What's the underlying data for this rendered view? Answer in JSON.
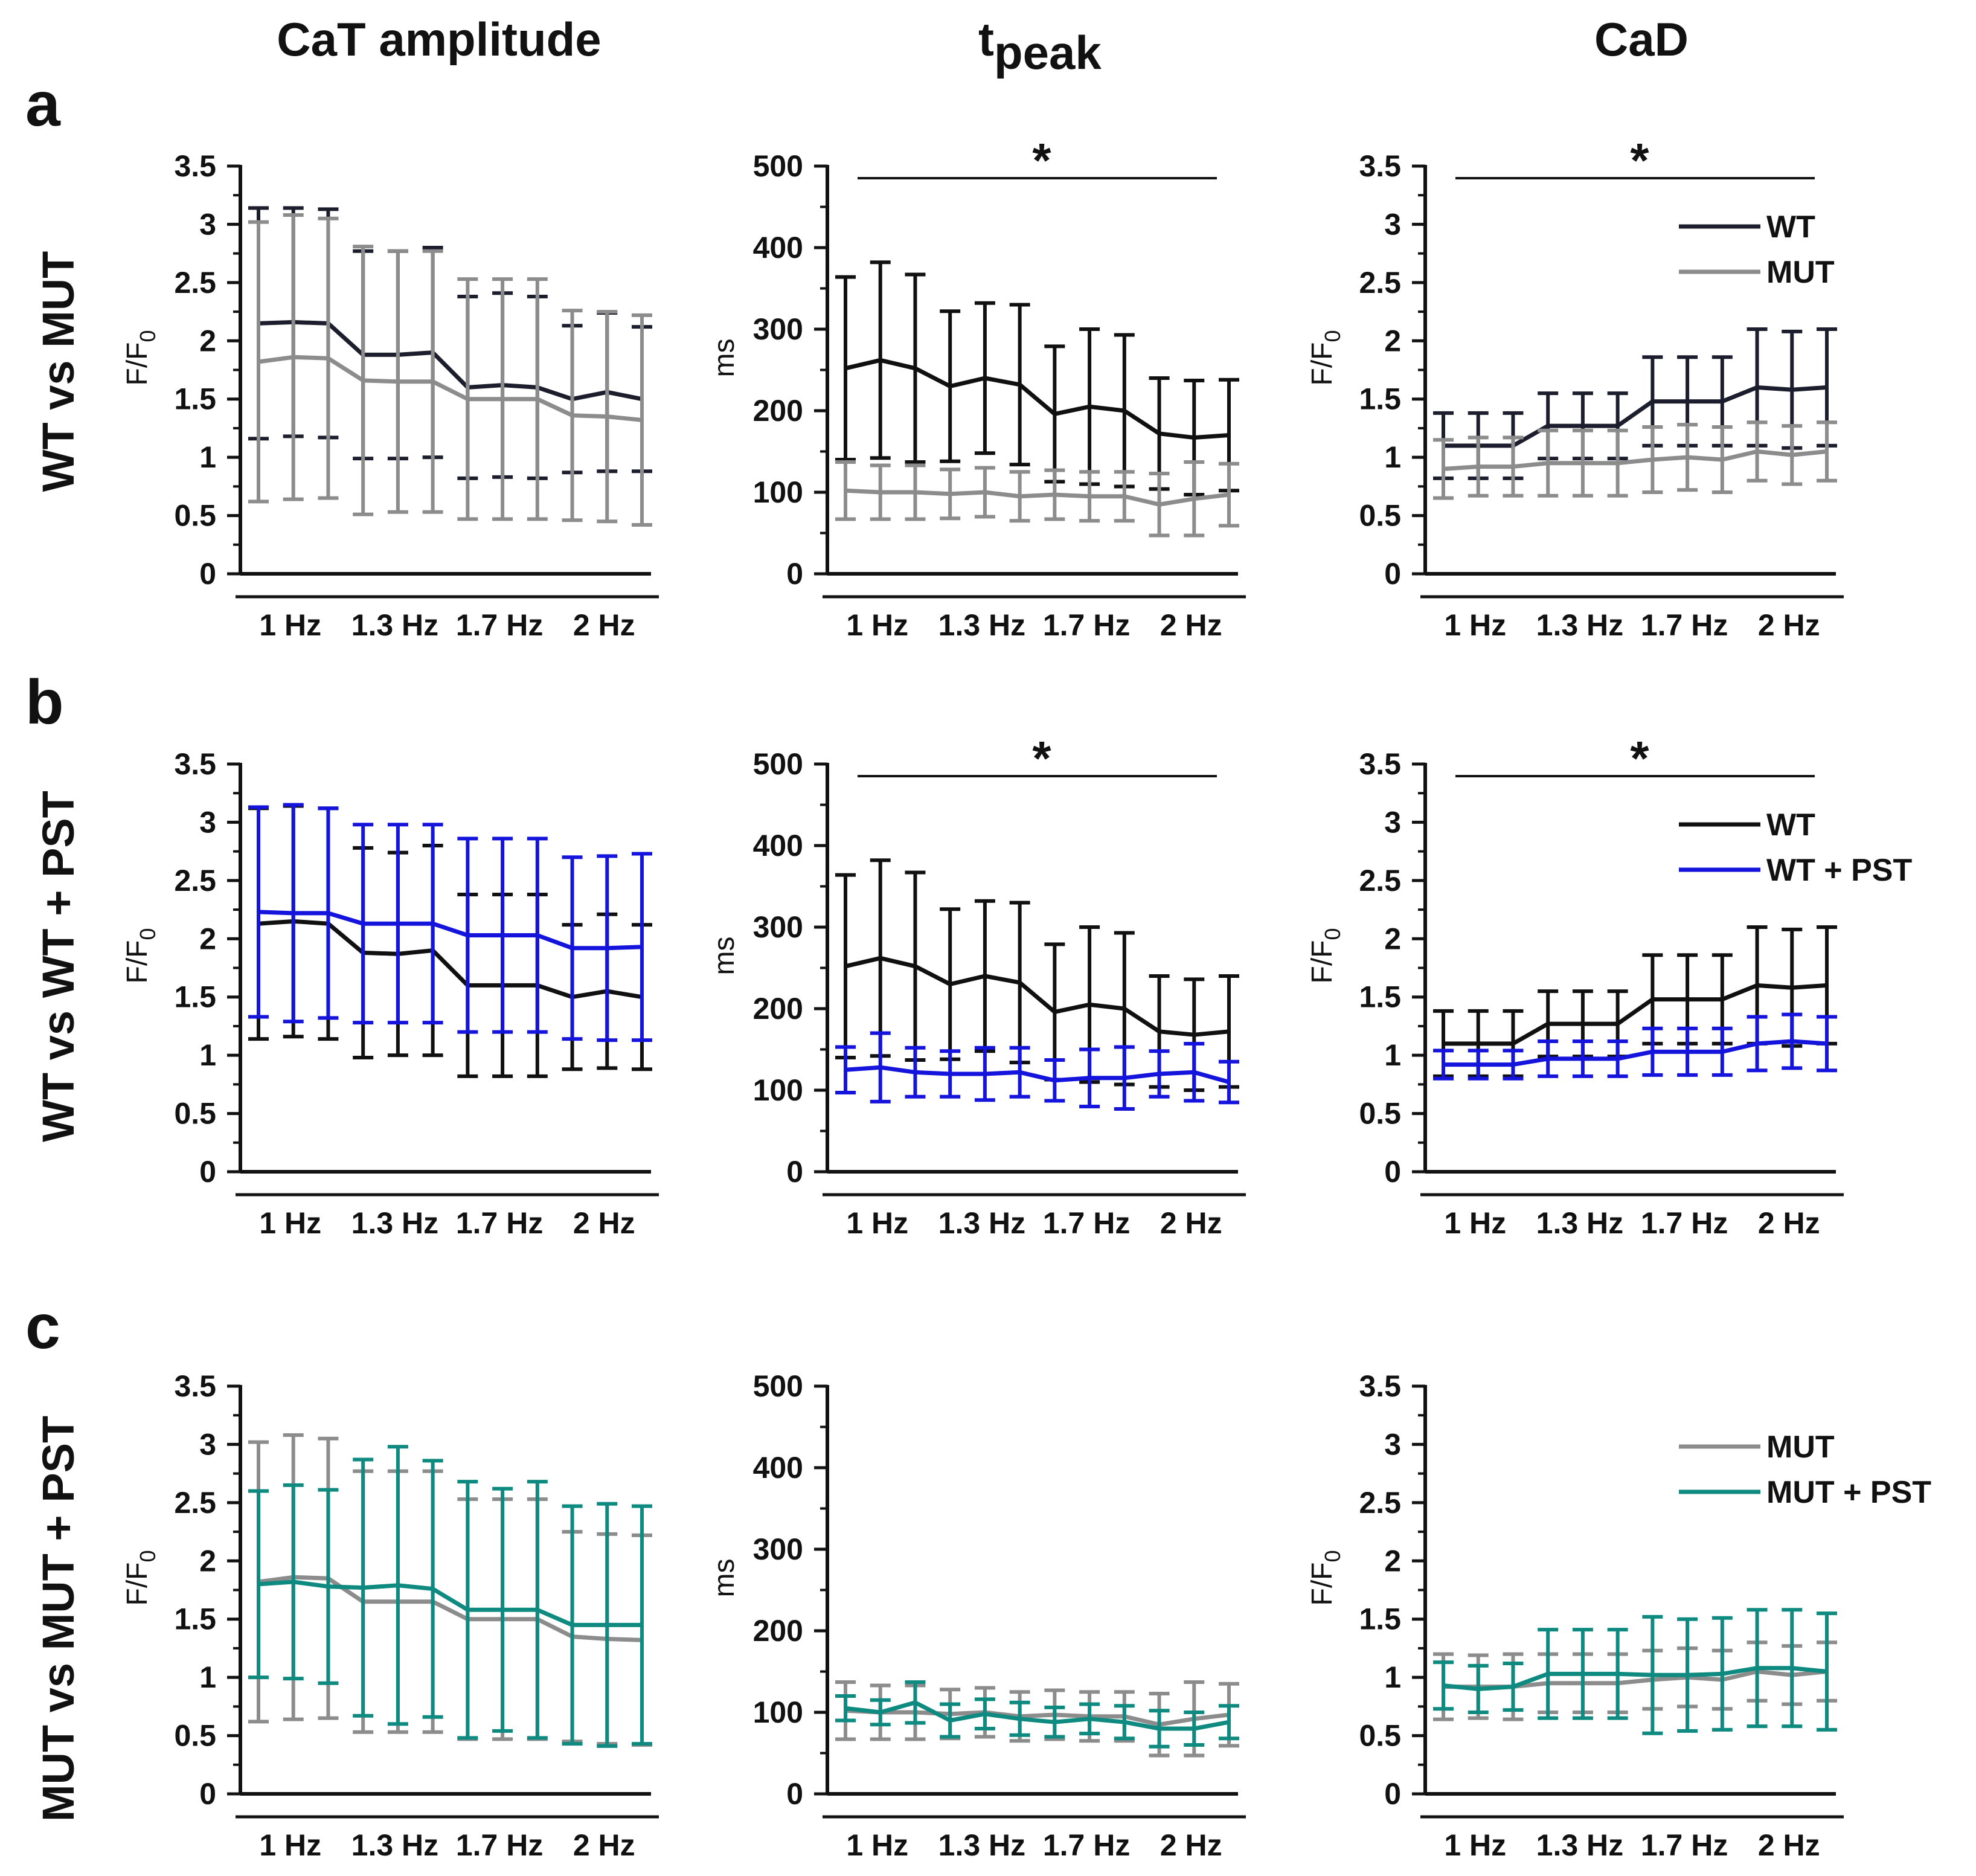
{
  "figure": {
    "column_titles": [
      "CaT amplitude",
      "t",
      "CaD"
    ],
    "column_title_sub": "peak",
    "rows": [
      {
        "letter": "a",
        "label": "WT vs MUT"
      },
      {
        "letter": "b",
        "label": "WT vs WT + PST"
      },
      {
        "letter": "c",
        "label": "MUT vs MUT + PST"
      }
    ],
    "group_labels": [
      "1 Hz",
      "1.3 Hz",
      "1.7 Hz",
      "2 Hz"
    ],
    "colors": {
      "WT": "#1c1e2e",
      "WT_b": "#101010",
      "MUT": "#8c8c8c",
      "WT_PST": "#1414dc",
      "MUT_PST": "#0f8a80",
      "dashed": "#1a1a1a",
      "dashed_c": "#9a9a9a"
    }
  },
  "chart_data": [
    {
      "id": "a1",
      "type": "line",
      "row": 0,
      "col": 0,
      "ylabel": "F/F",
      "ylabel_sub": "0",
      "ylim": [
        0,
        3.5
      ],
      "yticks": [
        "0",
        "0.5",
        "1",
        "1.5",
        "2",
        "2.5",
        "3",
        "3.5"
      ],
      "categories": [
        "1 Hz",
        "1 Hz",
        "1 Hz",
        "1.3 Hz",
        "1.3 Hz",
        "1.3 Hz",
        "1.7 Hz",
        "1.7 Hz",
        "1.7 Hz",
        "2 Hz",
        "2 Hz",
        "2 Hz"
      ],
      "significance": "",
      "legend": [],
      "series": [
        {
          "name": "WT",
          "color": "#1c1e2e",
          "values": [
            2.15,
            2.16,
            2.15,
            1.88,
            1.88,
            1.9,
            1.6,
            1.62,
            1.6,
            1.5,
            1.56,
            1.5
          ],
          "err": [
            0.99,
            0.98,
            0.98,
            0.89,
            0.89,
            0.9,
            0.78,
            0.79,
            0.78,
            0.63,
            0.68,
            0.62
          ]
        },
        {
          "name": "MUT",
          "color": "#8c8c8c",
          "values": [
            1.82,
            1.86,
            1.85,
            1.66,
            1.65,
            1.65,
            1.5,
            1.5,
            1.5,
            1.36,
            1.35,
            1.32
          ],
          "err": [
            1.2,
            1.22,
            1.2,
            1.15,
            1.12,
            1.12,
            1.03,
            1.03,
            1.03,
            0.9,
            0.9,
            0.9
          ]
        }
      ]
    },
    {
      "id": "a2",
      "type": "line",
      "row": 0,
      "col": 1,
      "ylabel": "ms",
      "ylabel_sub": "",
      "ylim": [
        0,
        500
      ],
      "yticks": [
        "0",
        "100",
        "200",
        "300",
        "400",
        "500"
      ],
      "categories": [
        "1 Hz",
        "1 Hz",
        "1 Hz",
        "1.3 Hz",
        "1.3 Hz",
        "1.3 Hz",
        "1.7 Hz",
        "1.7 Hz",
        "1.7 Hz",
        "2 Hz",
        "2 Hz",
        "2 Hz"
      ],
      "significance": "*",
      "legend": [],
      "series": [
        {
          "name": "WT",
          "color": "#101010",
          "values": [
            252,
            262,
            252,
            230,
            240,
            232,
            196,
            205,
            200,
            172,
            167,
            170
          ],
          "err": [
            112,
            120,
            115,
            92,
            92,
            98,
            83,
            95,
            93,
            68,
            70,
            68
          ]
        },
        {
          "name": "MUT",
          "color": "#8c8c8c",
          "values": [
            102,
            100,
            100,
            98,
            100,
            95,
            97,
            95,
            95,
            85,
            92,
            97
          ],
          "err": [
            35,
            33,
            33,
            30,
            30,
            30,
            30,
            30,
            30,
            38,
            45,
            38
          ]
        }
      ]
    },
    {
      "id": "a3",
      "type": "line",
      "row": 0,
      "col": 2,
      "ylabel": "F/F",
      "ylabel_sub": "0",
      "ylim": [
        0,
        3.5
      ],
      "yticks": [
        "0",
        "0.5",
        "1",
        "1.5",
        "2",
        "2.5",
        "3",
        "3.5"
      ],
      "categories": [
        "1 Hz",
        "1 Hz",
        "1 Hz",
        "1.3 Hz",
        "1.3 Hz",
        "1.3 Hz",
        "1.7 Hz",
        "1.7 Hz",
        "1.7 Hz",
        "2 Hz",
        "2 Hz",
        "2 Hz"
      ],
      "significance": "*",
      "legend": [
        {
          "name": "WT",
          "color": "#1c1e2e"
        },
        {
          "name": "MUT",
          "color": "#8c8c8c"
        }
      ],
      "series": [
        {
          "name": "WT",
          "color": "#1c1e2e",
          "values": [
            1.1,
            1.1,
            1.1,
            1.27,
            1.27,
            1.27,
            1.48,
            1.48,
            1.48,
            1.6,
            1.58,
            1.6
          ],
          "err": [
            0.28,
            0.28,
            0.28,
            0.28,
            0.28,
            0.28,
            0.38,
            0.38,
            0.38,
            0.5,
            0.5,
            0.5
          ]
        },
        {
          "name": "MUT",
          "color": "#8c8c8c",
          "values": [
            0.9,
            0.92,
            0.92,
            0.95,
            0.95,
            0.95,
            0.98,
            1.0,
            0.98,
            1.05,
            1.02,
            1.05
          ],
          "err": [
            0.25,
            0.25,
            0.25,
            0.28,
            0.28,
            0.28,
            0.28,
            0.28,
            0.28,
            0.25,
            0.25,
            0.25
          ]
        }
      ]
    },
    {
      "id": "b1",
      "type": "line",
      "row": 1,
      "col": 0,
      "ylabel": "F/F",
      "ylabel_sub": "0",
      "ylim": [
        0,
        3.5
      ],
      "yticks": [
        "0",
        "0.5",
        "1",
        "1.5",
        "2",
        "2.5",
        "3",
        "3.5"
      ],
      "categories": [
        "1 Hz",
        "1 Hz",
        "1 Hz",
        "1.3 Hz",
        "1.3 Hz",
        "1.3 Hz",
        "1.7 Hz",
        "1.7 Hz",
        "1.7 Hz",
        "2 Hz",
        "2 Hz",
        "2 Hz"
      ],
      "significance": "",
      "legend": [],
      "series": [
        {
          "name": "WT",
          "color": "#101010",
          "values": [
            2.13,
            2.15,
            2.13,
            1.88,
            1.87,
            1.9,
            1.6,
            1.6,
            1.6,
            1.5,
            1.55,
            1.5
          ],
          "err": [
            0.99,
            0.99,
            0.99,
            0.9,
            0.87,
            0.9,
            0.78,
            0.78,
            0.78,
            0.62,
            0.66,
            0.62
          ]
        },
        {
          "name": "WT + PST",
          "color": "#1414dc",
          "values": [
            2.23,
            2.22,
            2.22,
            2.13,
            2.13,
            2.13,
            2.03,
            2.03,
            2.03,
            1.92,
            1.92,
            1.93
          ],
          "err": [
            0.9,
            0.93,
            0.9,
            0.85,
            0.85,
            0.85,
            0.83,
            0.83,
            0.83,
            0.78,
            0.79,
            0.8
          ]
        }
      ]
    },
    {
      "id": "b2",
      "type": "line",
      "row": 1,
      "col": 1,
      "ylabel": "ms",
      "ylabel_sub": "",
      "ylim": [
        0,
        500
      ],
      "yticks": [
        "0",
        "100",
        "200",
        "300",
        "400",
        "500"
      ],
      "categories": [
        "1 Hz",
        "1 Hz",
        "1 Hz",
        "1.3 Hz",
        "1.3 Hz",
        "1.3 Hz",
        "1.7 Hz",
        "1.7 Hz",
        "1.7 Hz",
        "2 Hz",
        "2 Hz",
        "2 Hz"
      ],
      "significance": "*",
      "legend": [],
      "series": [
        {
          "name": "WT",
          "color": "#101010",
          "values": [
            252,
            262,
            252,
            230,
            240,
            232,
            196,
            205,
            200,
            172,
            168,
            172
          ],
          "err": [
            112,
            120,
            115,
            92,
            92,
            98,
            83,
            95,
            93,
            68,
            68,
            68
          ]
        },
        {
          "name": "WT + PST",
          "color": "#1414dc",
          "values": [
            125,
            128,
            122,
            120,
            120,
            122,
            112,
            115,
            115,
            120,
            122,
            110
          ],
          "err": [
            28,
            42,
            30,
            28,
            32,
            30,
            25,
            35,
            38,
            28,
            35,
            25
          ]
        }
      ]
    },
    {
      "id": "b3",
      "type": "line",
      "row": 1,
      "col": 2,
      "ylabel": "F/F",
      "ylabel_sub": "0",
      "ylim": [
        0,
        3.5
      ],
      "yticks": [
        "0",
        "0.5",
        "1",
        "1.5",
        "2",
        "2.5",
        "3",
        "3.5"
      ],
      "categories": [
        "1 Hz",
        "1 Hz",
        "1 Hz",
        "1.3 Hz",
        "1.3 Hz",
        "1.3 Hz",
        "1.7 Hz",
        "1.7 Hz",
        "1.7 Hz",
        "2 Hz",
        "2 Hz",
        "2 Hz"
      ],
      "significance": "*",
      "legend": [
        {
          "name": "WT",
          "color": "#101010"
        },
        {
          "name": "WT + PST",
          "color": "#1414dc"
        }
      ],
      "series": [
        {
          "name": "WT",
          "color": "#101010",
          "values": [
            1.1,
            1.1,
            1.1,
            1.27,
            1.27,
            1.27,
            1.48,
            1.48,
            1.48,
            1.6,
            1.58,
            1.6
          ],
          "err": [
            0.28,
            0.28,
            0.28,
            0.28,
            0.28,
            0.28,
            0.38,
            0.38,
            0.38,
            0.5,
            0.5,
            0.5
          ]
        },
        {
          "name": "WT + PST",
          "color": "#1414dc",
          "values": [
            0.92,
            0.92,
            0.92,
            0.97,
            0.97,
            0.97,
            1.03,
            1.03,
            1.03,
            1.1,
            1.12,
            1.1
          ],
          "err": [
            0.12,
            0.12,
            0.12,
            0.15,
            0.15,
            0.15,
            0.2,
            0.2,
            0.2,
            0.23,
            0.23,
            0.23
          ]
        }
      ]
    },
    {
      "id": "c1",
      "type": "line",
      "row": 2,
      "col": 0,
      "ylabel": "F/F",
      "ylabel_sub": "0",
      "ylim": [
        0,
        3.5
      ],
      "yticks": [
        "0",
        "0.5",
        "1",
        "1.5",
        "2",
        "2.5",
        "3",
        "3.5"
      ],
      "categories": [
        "1 Hz",
        "1 Hz",
        "1 Hz",
        "1.3 Hz",
        "1.3 Hz",
        "1.3 Hz",
        "1.7 Hz",
        "1.7 Hz",
        "1.7 Hz",
        "2 Hz",
        "2 Hz",
        "2 Hz"
      ],
      "significance": "",
      "legend": [],
      "series": [
        {
          "name": "MUT",
          "color": "#8c8c8c",
          "values": [
            1.82,
            1.86,
            1.85,
            1.65,
            1.65,
            1.65,
            1.5,
            1.5,
            1.5,
            1.35,
            1.33,
            1.32
          ],
          "err": [
            1.2,
            1.22,
            1.2,
            1.12,
            1.12,
            1.12,
            1.03,
            1.03,
            1.03,
            0.9,
            0.9,
            0.9
          ]
        },
        {
          "name": "MUT + PST",
          "color": "#0f8a80",
          "values": [
            1.8,
            1.82,
            1.78,
            1.77,
            1.79,
            1.76,
            1.58,
            1.58,
            1.58,
            1.45,
            1.45,
            1.45
          ],
          "err": [
            0.8,
            0.83,
            0.83,
            1.1,
            1.19,
            1.1,
            1.1,
            1.04,
            1.1,
            1.02,
            1.04,
            1.02
          ]
        }
      ]
    },
    {
      "id": "c2",
      "type": "line",
      "row": 2,
      "col": 1,
      "ylabel": "ms",
      "ylabel_sub": "",
      "ylim": [
        0,
        500
      ],
      "yticks": [
        "0",
        "100",
        "200",
        "300",
        "400",
        "500"
      ],
      "categories": [
        "1 Hz",
        "1 Hz",
        "1 Hz",
        "1.3 Hz",
        "1.3 Hz",
        "1.3 Hz",
        "1.7 Hz",
        "1.7 Hz",
        "1.7 Hz",
        "2 Hz",
        "2 Hz",
        "2 Hz"
      ],
      "significance": "",
      "legend": [],
      "series": [
        {
          "name": "MUT",
          "color": "#8c8c8c",
          "values": [
            102,
            100,
            100,
            98,
            100,
            95,
            97,
            95,
            95,
            85,
            92,
            97
          ],
          "err": [
            35,
            33,
            33,
            30,
            30,
            30,
            30,
            30,
            30,
            38,
            45,
            38
          ]
        },
        {
          "name": "MUT + PST",
          "color": "#0f8a80",
          "values": [
            105,
            100,
            112,
            90,
            98,
            92,
            88,
            92,
            88,
            80,
            80,
            88
          ],
          "err": [
            15,
            15,
            25,
            20,
            18,
            20,
            18,
            18,
            20,
            22,
            20,
            20
          ]
        }
      ]
    },
    {
      "id": "c3",
      "type": "line",
      "row": 2,
      "col": 2,
      "ylabel": "F/F",
      "ylabel_sub": "0",
      "ylim": [
        0,
        3.5
      ],
      "yticks": [
        "0",
        "0.5",
        "1",
        "1.5",
        "2",
        "2.5",
        "3",
        "3.5"
      ],
      "categories": [
        "1 Hz",
        "1 Hz",
        "1 Hz",
        "1.3 Hz",
        "1.3 Hz",
        "1.3 Hz",
        "1.7 Hz",
        "1.7 Hz",
        "1.7 Hz",
        "2 Hz",
        "2 Hz",
        "2 Hz"
      ],
      "significance": "",
      "legend": [
        {
          "name": "MUT",
          "color": "#8c8c8c"
        },
        {
          "name": "MUT + PST",
          "color": "#0f8a80"
        }
      ],
      "series": [
        {
          "name": "MUT",
          "color": "#8c8c8c",
          "values": [
            0.92,
            0.92,
            0.92,
            0.95,
            0.95,
            0.95,
            0.98,
            1.0,
            0.98,
            1.05,
            1.02,
            1.05
          ],
          "err": [
            0.28,
            0.27,
            0.28,
            0.25,
            0.25,
            0.25,
            0.25,
            0.25,
            0.25,
            0.25,
            0.25,
            0.25
          ]
        },
        {
          "name": "MUT + PST",
          "color": "#0f8a80",
          "values": [
            0.93,
            0.9,
            0.92,
            1.03,
            1.03,
            1.03,
            1.02,
            1.02,
            1.03,
            1.08,
            1.08,
            1.05
          ],
          "err": [
            0.2,
            0.2,
            0.2,
            0.38,
            0.38,
            0.38,
            0.5,
            0.48,
            0.48,
            0.5,
            0.5,
            0.5
          ]
        }
      ]
    }
  ]
}
